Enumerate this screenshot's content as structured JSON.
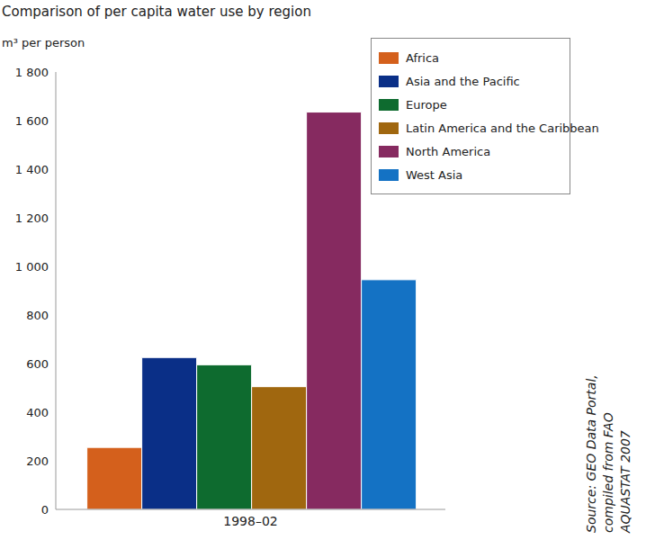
{
  "chart_data": {
    "type": "bar",
    "title": "Comparison of per capita water use by region",
    "y_label": "m³ per person",
    "categories": [
      "1998–02"
    ],
    "series": [
      {
        "name": "Africa",
        "color": "#d4601c",
        "values": [
          255
        ]
      },
      {
        "name": "Asia and the Pacific",
        "color": "#0a2f87",
        "values": [
          625
        ]
      },
      {
        "name": "Europe",
        "color": "#0e6b2f",
        "values": [
          595
        ]
      },
      {
        "name": "Latin America and the Caribbean",
        "color": "#a0670f",
        "values": [
          505
        ]
      },
      {
        "name": "North America",
        "color": "#862a60",
        "values": [
          1635
        ]
      },
      {
        "name": "West Asia",
        "color": "#1472c4",
        "values": [
          945
        ]
      }
    ],
    "ylim": [
      0,
      1800
    ],
    "yticks": [
      0,
      200,
      400,
      600,
      800,
      {
        "value": 1000,
        "label": "1 000"
      },
      {
        "value": 1200,
        "label": "1 200"
      },
      {
        "value": 1400,
        "label": "1 400"
      },
      {
        "value": 1600,
        "label": "1 600"
      },
      {
        "value": 1800,
        "label": "1 800"
      }
    ],
    "grid": false,
    "legend": "top-right",
    "annotations": [
      "Source: GEO Data Portal,",
      "compiled from FAO",
      "AQUASTAT 2007"
    ]
  }
}
